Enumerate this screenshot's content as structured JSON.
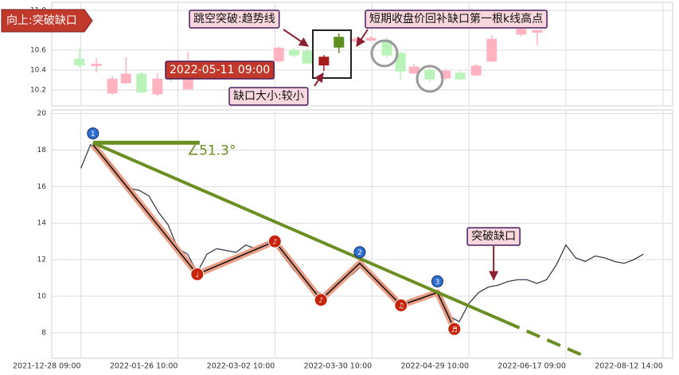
{
  "header_tag": "向上:突破缺口",
  "chart_data": [
    {
      "type": "candlestick",
      "xlim": [
        -6,
        122
      ],
      "ylim": [
        10.04,
        11.08
      ],
      "yticks": [
        10.2,
        10.4,
        10.6,
        {
          "value": 11.0,
          "label": "11.0"
        }
      ],
      "grid": true,
      "x": [
        -0.3,
        3.2,
        6.5,
        9.3,
        12.5,
        15.8,
        18.6,
        22.1,
        40.8,
        44.0,
        46.7,
        50.1,
        53.2,
        56.5,
        59.8,
        63.1,
        65.9,
        68.7,
        71.9,
        75.2,
        78.2,
        81.5,
        84.7,
        90.8,
        94.1
      ],
      "open": [
        10.51,
        10.45,
        10.17,
        10.27,
        10.36,
        10.16,
        10.35,
        10.21,
        10.49,
        10.6,
        10.59,
        10.45,
        10.73,
        10.69,
        10.7,
        10.7,
        10.57,
        10.37,
        10.4,
        10.32,
        10.37,
        10.35,
        10.49,
        10.76,
        10.78
      ],
      "high": [
        10.62,
        10.52,
        10.34,
        10.53,
        10.38,
        10.37,
        10.38,
        10.58,
        10.64,
        10.62,
        10.62,
        10.55,
        10.77,
        10.73,
        10.74,
        10.73,
        10.58,
        10.46,
        10.42,
        10.41,
        10.39,
        10.46,
        10.75,
        10.86,
        10.8
      ],
      "low": [
        10.43,
        10.38,
        10.15,
        10.27,
        10.17,
        10.14,
        10.28,
        10.2,
        10.48,
        10.53,
        10.46,
        10.39,
        10.57,
        10.68,
        10.69,
        10.52,
        10.3,
        10.36,
        10.28,
        10.3,
        10.3,
        10.34,
        10.48,
        10.74,
        10.65
      ],
      "close": [
        10.45,
        10.46,
        10.31,
        10.36,
        10.18,
        10.31,
        10.31,
        10.34,
        10.62,
        10.55,
        10.47,
        10.53,
        10.63,
        10.71,
        10.72,
        10.55,
        10.39,
        10.43,
        10.31,
        10.39,
        10.31,
        10.44,
        10.71,
        10.81,
        10.8
      ],
      "colors": [
        "#b9f3b9",
        "#ffb3c1",
        "#ffb3c1",
        "#ffb3c1",
        "#b9f3b9",
        "#ffb3c1",
        "#b9f3b9",
        "#ffb3c1",
        "#ffb3c1",
        "#b9f3b9",
        "#b9f3b9",
        "#a61b1b",
        "#5f8f1e",
        "#ffb3c1",
        "#ffb3c1",
        "#b9f3b9",
        "#b9f3b9",
        "#ffb3c1",
        "#b9f3b9",
        "#ffb3c1",
        "#b9f3b9",
        "#ffb3c1",
        "#ffb3c1",
        "#ffb3c1",
        "#ffb3c1"
      ],
      "annotations": [
        "跳空突破:趋势线",
        "2022-05-11 09:00",
        "缺口大小:较小",
        "短期收盘价回补缺口第一根k线高点"
      ]
    },
    {
      "type": "line",
      "xlim": [
        -6,
        122
      ],
      "ylim": [
        6.6,
        20.2
      ],
      "yticks": [
        8,
        10,
        12,
        14,
        16,
        18,
        20
      ],
      "xticks": [
        {
          "value": 0,
          "label": "2021-12-28 09:00"
        },
        {
          "value": 20,
          "label": "2022-01-26 10:00"
        },
        {
          "value": 40,
          "label": "2022-03-02 10:00"
        },
        {
          "value": 60,
          "label": "2022-03-30 10:00"
        },
        {
          "value": 80,
          "label": "2022-04-29 10:00"
        },
        {
          "value": 100,
          "label": "2022-06-17 09:00"
        },
        {
          "value": 120,
          "label": "2022-08-12 14:00"
        }
      ],
      "grid": true,
      "series": [
        {
          "color": "#3a3f4d",
          "x": [
            0,
            2,
            4,
            6,
            8,
            10,
            12,
            14,
            16,
            18,
            20,
            22,
            24,
            26,
            28,
            30,
            32,
            34,
            36,
            38,
            40,
            42,
            44,
            46,
            48,
            50,
            52,
            54,
            56,
            58,
            60,
            62,
            64,
            66,
            68,
            70,
            72,
            74,
            76,
            78,
            80,
            82,
            84,
            86,
            88,
            90,
            92,
            94,
            96,
            98,
            100,
            102,
            104,
            106,
            108,
            110,
            112,
            114,
            116
          ],
          "values": [
            17.0,
            18.3,
            17.8,
            17.3,
            16.5,
            15.9,
            15.8,
            15.5,
            14.6,
            13.9,
            12.6,
            12.3,
            11.3,
            12.3,
            12.6,
            12.5,
            12.4,
            12.8,
            12.6,
            12.9,
            13.0,
            12.1,
            11.4,
            10.9,
            10.3,
            10.1,
            10.6,
            10.9,
            11.2,
            11.7,
            11.1,
            10.7,
            10.2,
            9.6,
            9.8,
            9.8,
            10.1,
            10.2,
            8.9,
            8.6,
            9.6,
            10.2,
            10.5,
            10.6,
            10.8,
            10.9,
            10.9,
            10.7,
            10.9,
            11.7,
            12.8,
            12.1,
            11.9,
            12.2,
            12.1,
            11.9,
            11.8,
            12.0,
            12.3
          ]
        }
      ],
      "pattern": {
        "color": "#e8957a",
        "x": [
          2.5,
          24,
          40,
          49.5,
          57.5,
          66,
          73.5,
          77
        ],
        "values": [
          18.3,
          11.2,
          13.0,
          9.8,
          11.8,
          9.5,
          10.2,
          8.2
        ]
      },
      "markers": [
        {
          "label": "1",
          "x": 2.5,
          "value": 18.3,
          "color": "#2f6fd0"
        },
        {
          "label": "♩",
          "x": 24,
          "value": 11.2,
          "color": "#c8240c"
        },
        {
          "label": "♪",
          "x": 40,
          "value": 13.0,
          "color": "#c8240c"
        },
        {
          "label": "♪",
          "x": 49.5,
          "value": 9.8,
          "color": "#c8240c"
        },
        {
          "label": "2",
          "x": 57.5,
          "value": 11.8,
          "color": "#2f6fd0"
        },
        {
          "label": "♫",
          "x": 66,
          "value": 9.5,
          "color": "#c8240c"
        },
        {
          "label": "3",
          "x": 73.5,
          "value": 10.2,
          "color": "#2f6fd0"
        },
        {
          "label": "♬",
          "x": 77,
          "value": 8.2,
          "color": "#c8240c"
        }
      ],
      "trendline": {
        "color": "#6b8e23",
        "x": [
          2.5,
          104
        ],
        "values": [
          18.4,
          6.7
        ],
        "dashed_from": 87.7
      },
      "baseline": {
        "x": [
          2.5,
          24.5
        ],
        "values": [
          18.4,
          18.4
        ]
      },
      "angle_label": "∠51.3°",
      "gap_annotation": {
        "text": "突破缺口",
        "x": 85.1,
        "value": 10.9
      }
    }
  ]
}
